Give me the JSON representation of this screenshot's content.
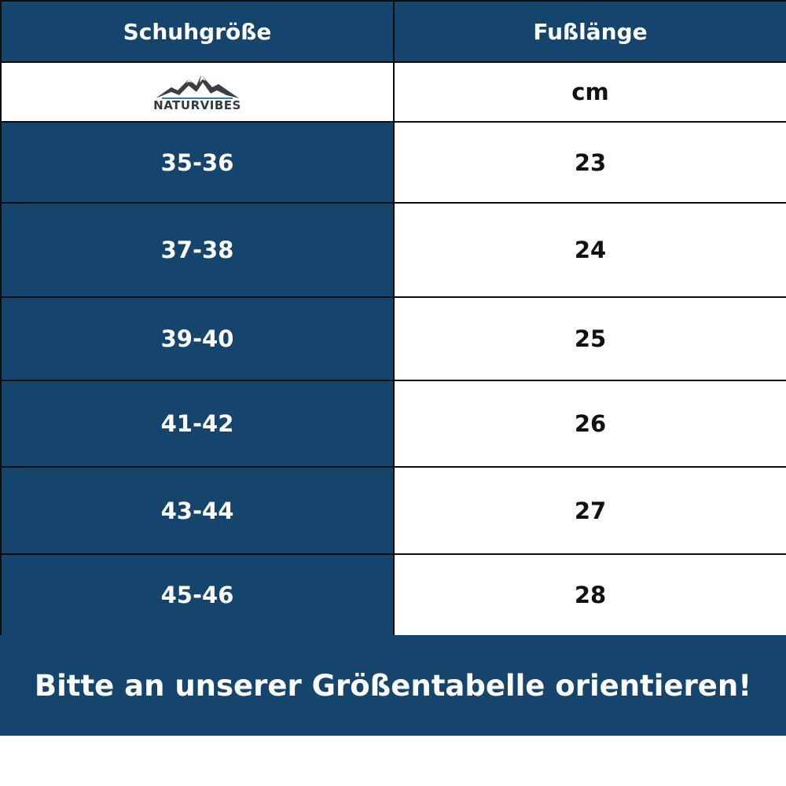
{
  "table": {
    "headers": [
      "Schuhgröße",
      "Fußlänge"
    ],
    "brand": "NATURVIBES",
    "unit": "cm",
    "rows": [
      {
        "size": "35-36",
        "length": "23"
      },
      {
        "size": "37-38",
        "length": "24"
      },
      {
        "size": "39-40",
        "length": "25"
      },
      {
        "size": "41-42",
        "length": "26"
      },
      {
        "size": "43-44",
        "length": "27"
      },
      {
        "size": "45-46",
        "length": "28"
      }
    ]
  },
  "footer": {
    "text": "Bitte an unserer Größentabelle orientieren!"
  },
  "colors": {
    "primary_blue": "#15446c",
    "white": "#ffffff",
    "text_dark": "#111111"
  },
  "icons": {
    "logo": "mountain-logo-icon"
  }
}
